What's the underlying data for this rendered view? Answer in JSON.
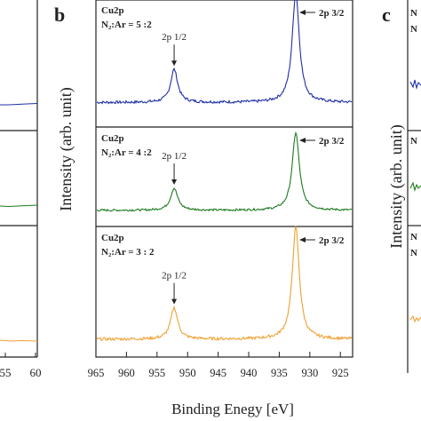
{
  "panel_labels": {
    "center": "b",
    "right": "c"
  },
  "left_panel": {
    "tick_labels": [
      "55",
      "60"
    ]
  },
  "right_panel": {
    "fragments": [
      "N",
      "N",
      "N",
      "N",
      "N"
    ]
  },
  "chart_data": {
    "type": "line",
    "xlabel": "Binding Enegy [eV]",
    "ylabel": "Intensity (arb. unit)",
    "xlim": [
      965,
      923
    ],
    "xticks": [
      965,
      960,
      955,
      950,
      945,
      940,
      935,
      930,
      925
    ],
    "x_reversed": true,
    "grid": false,
    "panels": [
      {
        "element": "Cu2p",
        "ratio": "N₂:Ar = 5 :2",
        "color": "#1f2fa8",
        "baseline": 0.15,
        "peaks": [
          {
            "label": "2p 1/2",
            "position": 952.2,
            "height": 0.3
          },
          {
            "label": "2p 3/2",
            "position": 932.3,
            "height": 1.0
          }
        ]
      },
      {
        "element": "Cu2p",
        "ratio": "N₂:Ar = 4 :2",
        "color": "#1e7a1e",
        "baseline": 0.1,
        "peaks": [
          {
            "label": "2p 1/2",
            "position": 952.2,
            "height": 0.27
          },
          {
            "label": "2p 3/2",
            "position": 932.3,
            "height": 0.95
          }
        ]
      },
      {
        "element": "Cu2p",
        "ratio": "N₂:Ar = 3 : 2",
        "color": "#f0a030",
        "baseline": 0.08,
        "peaks": [
          {
            "label": "2p 1/2",
            "position": 952.2,
            "height": 0.28
          },
          {
            "label": "2p 3/2",
            "position": 932.3,
            "height": 1.0
          }
        ]
      }
    ]
  }
}
